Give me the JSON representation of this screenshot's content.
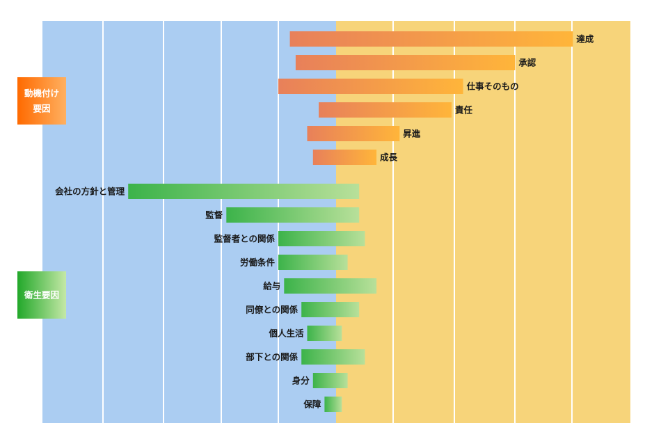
{
  "chart_data": {
    "type": "bar",
    "orientation": "horizontal-diverging",
    "title": "",
    "xlabel": "",
    "ylabel": "",
    "grid": true,
    "groups": [
      {
        "label": "動機付け\n要因",
        "color_start": "#ff6a00",
        "color_end": "#ffb060"
      },
      {
        "label": "衛生要因",
        "color_start": "#22a82a",
        "color_end": "#c4e8a6"
      }
    ],
    "series": [
      {
        "group": 0,
        "color_start": "#e8805a",
        "color_end": "#ffb53a",
        "categories": [
          "達成",
          "承認",
          "仕事そのもの",
          "責任",
          "昇進",
          "成長"
        ],
        "dissatisfaction": [
          8,
          7,
          10,
          3,
          5,
          4
        ],
        "satisfaction": [
          41,
          31,
          22,
          20,
          11,
          7
        ]
      },
      {
        "group": 1,
        "color_start": "#3cb34a",
        "color_end": "#b8e09a",
        "categories": [
          "会社の方針と管理",
          "監督",
          "監督者との関係",
          "労働条件",
          "給与",
          "同僚との関係",
          "個人生活",
          "部下との関係",
          "身分",
          "保障"
        ],
        "dissatisfaction": [
          36,
          19,
          10,
          10,
          9,
          6,
          5,
          6,
          4,
          2
        ],
        "satisfaction": [
          4,
          4,
          5,
          2,
          7,
          4,
          1,
          5,
          2,
          1
        ]
      }
    ]
  }
}
